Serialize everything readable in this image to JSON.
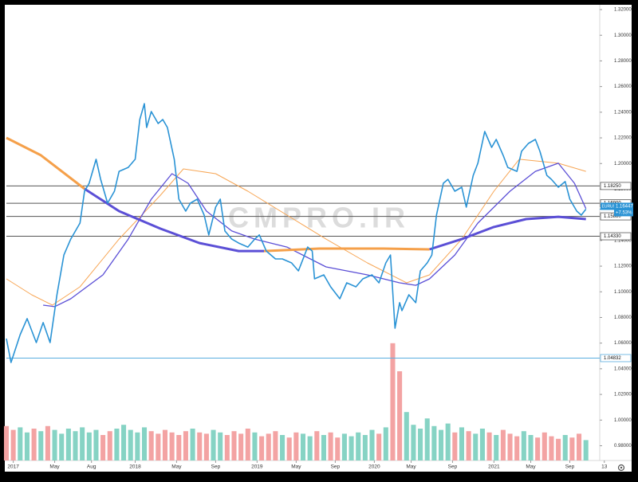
{
  "chart_data": {
    "type": "line",
    "watermark": "CMPRO.IR",
    "xlim": [
      0,
      258
    ],
    "ylim": [
      0.9685,
      1.3225
    ],
    "grid": false,
    "xticks": [
      {
        "value": 3,
        "label": "2017"
      },
      {
        "value": 21,
        "label": "May"
      },
      {
        "value": 37,
        "label": "Aug"
      },
      {
        "value": 56,
        "label": "2018"
      },
      {
        "value": 74,
        "label": "May"
      },
      {
        "value": 91,
        "label": "Sep"
      },
      {
        "value": 109,
        "label": "2019"
      },
      {
        "value": 126,
        "label": "May"
      },
      {
        "value": 143,
        "label": "Sep"
      },
      {
        "value": 160,
        "label": "2020"
      },
      {
        "value": 176,
        "label": "May"
      },
      {
        "value": 194,
        "label": "Sep"
      },
      {
        "value": 212,
        "label": "2021"
      },
      {
        "value": 228,
        "label": "May"
      },
      {
        "value": 245,
        "label": "Sep"
      },
      {
        "value": 260,
        "label": "13"
      }
    ],
    "yticks": [
      {
        "value": 0.98,
        "label": "0.98000"
      },
      {
        "value": 1.0,
        "label": "1.00000"
      },
      {
        "value": 1.02,
        "label": "1.02000"
      },
      {
        "value": 1.04,
        "label": "1.04000"
      },
      {
        "value": 1.06,
        "label": "1.06000"
      },
      {
        "value": 1.08,
        "label": "1.08000"
      },
      {
        "value": 1.1,
        "label": "1.10000"
      },
      {
        "value": 1.12,
        "label": "1.12000"
      },
      {
        "value": 1.14,
        "label": "1.14000"
      },
      {
        "value": 1.16,
        "label": "1.16000"
      },
      {
        "value": 1.18,
        "label": "1.18000"
      },
      {
        "value": 1.2,
        "label": "1.20000"
      },
      {
        "value": 1.22,
        "label": "1.22000"
      },
      {
        "value": 1.24,
        "label": "1.24000"
      },
      {
        "value": 1.26,
        "label": "1.26000"
      },
      {
        "value": 1.28,
        "label": "1.28000"
      },
      {
        "value": 1.3,
        "label": "1.30000"
      },
      {
        "value": 1.32,
        "label": "1.32000"
      }
    ],
    "levels": [
      {
        "value": 1.1825,
        "label": "1.18250",
        "color": "#555555"
      },
      {
        "value": 1.169,
        "label": "1.16900",
        "color": "#555555"
      },
      {
        "value": 1.1588,
        "label": "1.15880",
        "color": "#555555"
      },
      {
        "value": 1.1433,
        "label": "1.14330",
        "color": "#555555"
      },
      {
        "value": 1.04832,
        "label": "1.04832",
        "color": "#5aaee0"
      }
    ],
    "last_price": {
      "value": 1.16447,
      "label": "1.16447"
    },
    "change": "+7.53%",
    "series": [
      {
        "color": "#f7a655",
        "width": 1,
        "x": [
          0,
          11,
          20,
          32,
          49,
          67,
          77,
          91,
          105,
          122,
          139,
          157,
          174,
          184,
          198,
          212,
          223,
          240,
          252
        ],
        "values": [
          1.1101,
          1.0977,
          1.0896,
          1.1039,
          1.1411,
          1.1753,
          1.1958,
          1.1921,
          1.1784,
          1.1598,
          1.1411,
          1.1225,
          1.107,
          1.1132,
          1.1411,
          1.1784,
          1.2033,
          1.2002,
          1.1939
        ]
      },
      {
        "color": "#5b4fd6",
        "width": 1.3,
        "x": [
          16,
          21,
          28,
          42,
          53,
          63,
          72,
          79,
          87,
          98,
          108,
          122,
          139,
          157,
          171,
          178,
          184,
          195,
          205,
          219,
          230,
          240,
          247,
          252
        ],
        "values": [
          1.0896,
          1.0884,
          1.0946,
          1.1132,
          1.1411,
          1.1722,
          1.1921,
          1.1846,
          1.1629,
          1.1474,
          1.1411,
          1.1349,
          1.1194,
          1.1132,
          1.107,
          1.1051,
          1.1101,
          1.1287,
          1.1536,
          1.1784,
          1.1939,
          1.2002,
          1.1846,
          1.1648
        ]
      },
      {
        "color": "#f5a04a",
        "width": 3,
        "x": [
          0,
          15,
          34,
          49,
          67,
          84,
          101,
          112,
          136,
          164,
          184,
          198,
          212,
          226,
          240,
          252
        ],
        "values": [
          1.22,
          1.2064,
          1.1803,
          null,
          null,
          null,
          null,
          1.1318,
          1.1337,
          1.1337,
          1.1331,
          null,
          null,
          null,
          null,
          null
        ]
      },
      {
        "color": "#5b4fd6",
        "width": 3,
        "x": [
          0,
          15,
          34,
          49,
          67,
          84,
          101,
          112,
          136,
          164,
          184,
          198,
          212,
          226,
          240,
          252
        ],
        "values": [
          null,
          null,
          1.1803,
          1.1629,
          1.1492,
          1.138,
          1.1318,
          1.1318,
          null,
          null,
          1.1331,
          1.1411,
          1.1505,
          1.1567,
          1.1585,
          1.1567
        ]
      },
      {
        "name": "EURUSD",
        "color": "#2a93d5",
        "width": 1.6,
        "x": [
          0,
          2,
          6,
          9,
          13,
          16,
          19,
          22,
          25,
          28,
          32,
          34,
          36,
          39,
          41,
          44,
          47,
          49,
          53,
          56,
          58,
          60,
          61,
          63,
          66,
          68,
          70,
          73,
          75,
          78,
          80,
          83,
          86,
          88,
          91,
          93,
          95,
          98,
          101,
          105,
          108,
          110,
          113,
          117,
          120,
          124,
          127,
          131,
          133,
          134,
          138,
          141,
          145,
          148,
          152,
          155,
          159,
          162,
          165,
          167,
          169,
          171,
          172,
          175,
          178,
          180,
          183,
          185,
          187,
          190,
          192,
          195,
          198,
          200,
          203,
          205,
          208,
          211,
          213,
          216,
          218,
          222,
          224,
          227,
          230,
          232,
          235,
          237,
          240,
          243,
          245,
          248,
          250,
          252
        ],
        "values": [
          1.0635,
          1.0449,
          1.0666,
          1.0791,
          1.0604,
          1.076,
          1.0604,
          1.0977,
          1.1287,
          1.1411,
          1.1536,
          1.1784,
          1.1846,
          1.2033,
          1.1877,
          1.1691,
          1.1784,
          1.1939,
          1.197,
          1.2033,
          1.2343,
          1.2467,
          1.2281,
          1.2405,
          1.2312,
          1.2343,
          1.2281,
          1.2033,
          1.1722,
          1.1629,
          1.1691,
          1.1722,
          1.1598,
          1.1443,
          1.166,
          1.1722,
          1.1474,
          1.1411,
          1.138,
          1.1349,
          1.1411,
          1.1443,
          1.1318,
          1.1256,
          1.1256,
          1.1225,
          1.1163,
          1.1349,
          1.1318,
          1.1101,
          1.1132,
          1.1039,
          1.0946,
          1.107,
          1.1039,
          1.1101,
          1.1132,
          1.107,
          1.1225,
          1.1287,
          1.0716,
          1.0915,
          1.0853,
          1.0977,
          1.0915,
          1.1163,
          1.1225,
          1.1287,
          1.1598,
          1.1846,
          1.1877,
          1.1784,
          1.1815,
          1.166,
          1.1908,
          1.2002,
          1.225,
          1.2126,
          1.2188,
          1.2064,
          1.197,
          1.1939,
          1.2095,
          1.2157,
          1.2188,
          1.2095,
          1.1908,
          1.1877,
          1.1815,
          1.1859,
          1.1722,
          1.1629,
          1.1598,
          1.16447
        ]
      }
    ],
    "volume": {
      "up_color": "#86d3c4",
      "down_color": "#f3a3a3",
      "vlim": [
        0,
        100
      ],
      "x": [
        0,
        3,
        6,
        9,
        12,
        15,
        18,
        21,
        24,
        27,
        30,
        33,
        36,
        39,
        42,
        45,
        48,
        51,
        54,
        57,
        60,
        63,
        66,
        69,
        72,
        75,
        78,
        81,
        84,
        87,
        90,
        93,
        96,
        99,
        102,
        105,
        108,
        111,
        114,
        117,
        120,
        123,
        126,
        129,
        132,
        135,
        138,
        141,
        144,
        147,
        150,
        153,
        156,
        159,
        162,
        165,
        168,
        171,
        174,
        177,
        180,
        183,
        186,
        189,
        192,
        195,
        198,
        201,
        204,
        207,
        210,
        213,
        216,
        219,
        222,
        225,
        228,
        231,
        234,
        237,
        240,
        243,
        246,
        249,
        252
      ],
      "values": [
        27,
        24,
        26,
        22,
        25,
        23,
        27,
        24,
        21,
        25,
        23,
        26,
        22,
        24,
        20,
        23,
        25,
        28,
        24,
        22,
        26,
        23,
        21,
        24,
        22,
        20,
        23,
        25,
        22,
        21,
        24,
        22,
        20,
        23,
        21,
        25,
        22,
        19,
        21,
        23,
        20,
        18,
        22,
        21,
        19,
        23,
        20,
        22,
        18,
        21,
        19,
        22,
        20,
        24,
        21,
        26,
        92,
        70,
        38,
        28,
        25,
        33,
        27,
        24,
        29,
        22,
        26,
        23,
        21,
        25,
        22,
        20,
        24,
        21,
        19,
        23,
        20,
        18,
        22,
        19,
        17,
        20,
        18,
        21,
        16
      ]
    }
  }
}
